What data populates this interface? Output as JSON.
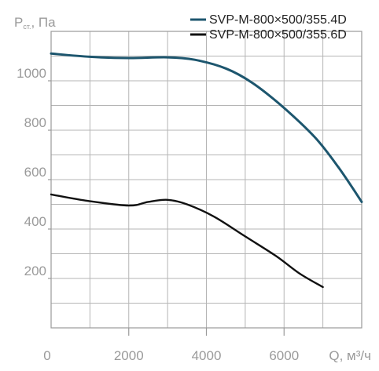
{
  "chart_data": {
    "type": "line",
    "xlabel": "Q, м³/ч",
    "ylabel_main": "P",
    "ylabel_sub": "ст.",
    "ylabel_unit": ", Па",
    "xlim": [
      0,
      8000
    ],
    "ylim": [
      0,
      1200
    ],
    "x_ticks": [
      {
        "value": 0,
        "label": "0"
      },
      {
        "value": 2000,
        "label": "2000"
      },
      {
        "value": 4000,
        "label": "4000"
      },
      {
        "value": 6000,
        "label": "6000"
      }
    ],
    "y_ticks": [
      {
        "value": 200,
        "label": "200"
      },
      {
        "value": 400,
        "label": "400"
      },
      {
        "value": 600,
        "label": "600"
      },
      {
        "value": 800,
        "label": "800"
      },
      {
        "value": 1000,
        "label": "1000"
      }
    ],
    "grid": true,
    "legend_position": "top-right",
    "series": [
      {
        "name": "SVP-M-800×500/355.4D",
        "color": "#1d566e",
        "points": [
          [
            0,
            1110
          ],
          [
            1000,
            1097
          ],
          [
            2000,
            1092
          ],
          [
            3000,
            1095
          ],
          [
            3700,
            1085
          ],
          [
            4500,
            1050
          ],
          [
            5200,
            990
          ],
          [
            6000,
            890
          ],
          [
            6800,
            770
          ],
          [
            7400,
            650
          ],
          [
            8000,
            510
          ]
        ]
      },
      {
        "name": "SVP-M-800×500/355.6D",
        "color": "#111111",
        "points": [
          [
            0,
            540
          ],
          [
            900,
            515
          ],
          [
            2000,
            495
          ],
          [
            2500,
            510
          ],
          [
            3000,
            518
          ],
          [
            3500,
            500
          ],
          [
            4200,
            450
          ],
          [
            5000,
            370
          ],
          [
            5800,
            290
          ],
          [
            6400,
            220
          ],
          [
            7000,
            165
          ]
        ]
      }
    ]
  }
}
